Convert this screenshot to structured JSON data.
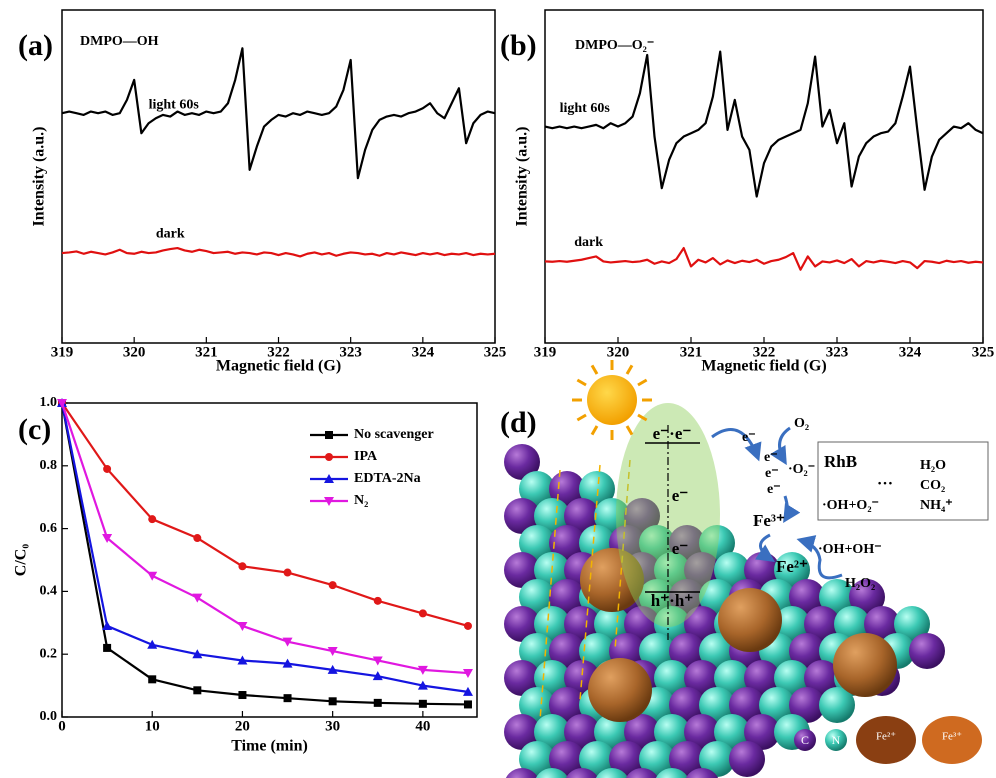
{
  "chart_data": [
    {
      "type": "line",
      "panel_label": "(a)",
      "annotation": "DMPO—OH",
      "xlabel": "Magnetic field (G)",
      "ylabel": "Intensity (a.u.)",
      "x": [
        319,
        319.1,
        319.2,
        319.3,
        319.4,
        319.5,
        319.6,
        319.7,
        319.8,
        319.9,
        320,
        320.1,
        320.2,
        320.3,
        320.4,
        320.5,
        320.6,
        320.7,
        320.8,
        320.9,
        321,
        321.1,
        321.2,
        321.3,
        321.4,
        321.5,
        321.6,
        321.7,
        321.8,
        321.9,
        322,
        322.1,
        322.2,
        322.3,
        322.4,
        322.5,
        322.6,
        322.7,
        322.8,
        322.9,
        323,
        323.1,
        323.2,
        323.3,
        323.4,
        323.5,
        323.6,
        323.7,
        323.8,
        323.9,
        324,
        324.1,
        324.2,
        324.3,
        324.4,
        324.5,
        324.6,
        324.7,
        324.8,
        324.9,
        325
      ],
      "series": [
        {
          "name": "light 60s",
          "color": "#000000",
          "values": [
            6.9,
            6.95,
            6.9,
            6.85,
            6.95,
            6.9,
            6.95,
            6.85,
            6.9,
            7.3,
            7.9,
            6.3,
            6.6,
            6.75,
            6.85,
            6.8,
            6.95,
            6.85,
            6.9,
            6.85,
            6.95,
            6.9,
            6.95,
            7.2,
            7.9,
            8.85,
            5.2,
            5.9,
            6.5,
            6.7,
            6.85,
            6.8,
            6.9,
            6.85,
            6.95,
            6.9,
            6.85,
            6.9,
            7.1,
            7.6,
            8.5,
            4.95,
            5.8,
            6.4,
            6.7,
            6.8,
            6.85,
            6.8,
            6.9,
            6.95,
            7.05,
            7.2,
            6.9,
            6.75,
            7.2,
            7.65,
            6.0,
            6.6,
            6.85,
            6.95,
            6.9
          ]
        },
        {
          "name": "dark",
          "color": "#e01010",
          "values": [
            2.7,
            2.72,
            2.75,
            2.68,
            2.74,
            2.7,
            2.66,
            2.72,
            2.8,
            2.7,
            2.68,
            2.74,
            2.7,
            2.72,
            2.78,
            2.82,
            2.85,
            2.78,
            2.74,
            2.8,
            2.76,
            2.7,
            2.72,
            2.74,
            2.68,
            2.72,
            2.7,
            2.66,
            2.72,
            2.7,
            2.64,
            2.7,
            2.66,
            2.6,
            2.68,
            2.72,
            2.66,
            2.7,
            2.62,
            2.68,
            2.72,
            2.7,
            2.66,
            2.68,
            2.62,
            2.7,
            2.66,
            2.72,
            2.68,
            2.64,
            2.7,
            2.66,
            2.7,
            2.64,
            2.68,
            2.66,
            2.7,
            2.64,
            2.68,
            2.66,
            2.68
          ]
        }
      ],
      "xlim": [
        319,
        325
      ],
      "ylim": [
        0,
        10
      ],
      "xticks": [
        319,
        320,
        321,
        322,
        323,
        324,
        325
      ]
    },
    {
      "type": "line",
      "panel_label": "(b)",
      "annotation": "DMPO—O₂⁻",
      "xlabel": "Magnetic field (G)",
      "ylabel": "Intensity (a.u.)",
      "x": [
        319,
        319.1,
        319.2,
        319.3,
        319.4,
        319.5,
        319.6,
        319.7,
        319.8,
        319.9,
        320,
        320.1,
        320.2,
        320.3,
        320.4,
        320.5,
        320.6,
        320.7,
        320.8,
        320.9,
        321,
        321.1,
        321.2,
        321.3,
        321.4,
        321.5,
        321.6,
        321.7,
        321.8,
        321.9,
        322,
        322.1,
        322.2,
        322.3,
        322.4,
        322.5,
        322.6,
        322.7,
        322.8,
        322.9,
        323,
        323.1,
        323.2,
        323.3,
        323.4,
        323.5,
        323.6,
        323.7,
        323.8,
        323.9,
        324,
        324.1,
        324.2,
        324.3,
        324.4,
        324.5,
        324.6,
        324.7,
        324.8,
        324.9,
        325
      ],
      "series": [
        {
          "name": "light 60s",
          "color": "#000000",
          "values": [
            6.5,
            6.45,
            6.5,
            6.45,
            6.5,
            6.45,
            6.5,
            6.55,
            6.45,
            6.6,
            6.5,
            6.6,
            6.8,
            7.5,
            8.65,
            6.2,
            4.65,
            5.5,
            6.0,
            6.2,
            6.3,
            6.4,
            6.6,
            7.4,
            8.75,
            6.4,
            7.3,
            6.2,
            5.8,
            4.4,
            5.4,
            5.9,
            6.1,
            6.2,
            6.3,
            6.4,
            7.2,
            8.6,
            6.5,
            7.0,
            6.0,
            6.6,
            4.7,
            5.6,
            6.0,
            6.2,
            6.3,
            6.35,
            6.6,
            7.4,
            8.3,
            6.4,
            4.6,
            5.6,
            6.1,
            6.3,
            6.5,
            6.45,
            6.6,
            6.4,
            6.3
          ]
        },
        {
          "name": "dark",
          "color": "#e01010",
          "values": [
            2.45,
            2.44,
            2.46,
            2.44,
            2.47,
            2.5,
            2.55,
            2.6,
            2.45,
            2.42,
            2.44,
            2.46,
            2.43,
            2.45,
            2.5,
            2.38,
            2.45,
            2.4,
            2.52,
            2.85,
            2.3,
            2.5,
            2.42,
            2.55,
            2.36,
            2.48,
            2.4,
            2.47,
            2.43,
            2.5,
            2.38,
            2.46,
            2.5,
            2.58,
            2.7,
            2.2,
            2.6,
            2.3,
            2.45,
            2.42,
            2.48,
            2.4,
            2.52,
            2.3,
            2.46,
            2.42,
            2.47,
            2.44,
            2.4,
            2.46,
            2.42,
            2.25,
            2.46,
            2.44,
            2.4,
            2.47,
            2.43,
            2.46,
            2.41,
            2.44,
            2.42
          ]
        }
      ],
      "xlim": [
        319,
        325
      ],
      "ylim": [
        0,
        10
      ],
      "xticks": [
        319,
        320,
        321,
        322,
        323,
        324,
        325
      ]
    },
    {
      "type": "line",
      "panel_label": "(c)",
      "xlabel": "Time (min)",
      "ylabel": "C/C₀",
      "x": [
        0,
        5,
        10,
        15,
        20,
        25,
        30,
        35,
        40,
        45
      ],
      "series": [
        {
          "name": "No scavenger",
          "color": "#000000",
          "marker": "square",
          "values": [
            1,
            0.22,
            0.12,
            0.085,
            0.07,
            0.06,
            0.05,
            0.045,
            0.042,
            0.04
          ]
        },
        {
          "name": "IPA",
          "color": "#e01818",
          "marker": "circle",
          "values": [
            1,
            0.79,
            0.63,
            0.57,
            0.48,
            0.46,
            0.42,
            0.37,
            0.33,
            0.29
          ]
        },
        {
          "name": "EDTA-2Na",
          "color": "#1515e0",
          "marker": "triangle-up",
          "values": [
            1,
            0.29,
            0.23,
            0.2,
            0.18,
            0.17,
            0.15,
            0.13,
            0.1,
            0.08
          ]
        },
        {
          "name": "N₂",
          "color": "#e018e0",
          "marker": "triangle-down",
          "values": [
            1,
            0.57,
            0.45,
            0.38,
            0.29,
            0.24,
            0.21,
            0.18,
            0.15,
            0.14
          ]
        }
      ],
      "xlim": [
        0,
        46
      ],
      "ylim": [
        0,
        1
      ],
      "xticks": [
        0,
        10,
        20,
        30,
        40
      ],
      "yticks": [
        {
          "value": 0,
          "label": "0.0"
        },
        0.2,
        0.4,
        0.6,
        0.8,
        {
          "value": 1,
          "label": "1.0"
        }
      ],
      "legend": "upper right"
    }
  ],
  "diagram": {
    "panel_label": "(d)",
    "top_electrons": "e⁻·e⁻",
    "band_electrons": [
      "e⁻",
      "e⁻"
    ],
    "holes": "h⁺·h⁺",
    "transfer_electrons": [
      "e⁻",
      "e⁻",
      "e⁻",
      "e⁻"
    ],
    "o2": "O₂",
    "superoxide": "·O₂⁻",
    "fe3": "Fe³⁺",
    "fe2": "Fe²⁺",
    "oh_reaction": "·OH+OH⁻",
    "h2o2": "H₂O₂",
    "box": {
      "reactant": "RhB",
      "ellipsis": "…",
      "radicals": "·OH+O₂⁻",
      "products": [
        "H₂O",
        "CO₂",
        "NH₄⁺"
      ]
    },
    "legend": [
      "C",
      "N",
      "Fe²⁺",
      "Fe³⁺"
    ]
  }
}
